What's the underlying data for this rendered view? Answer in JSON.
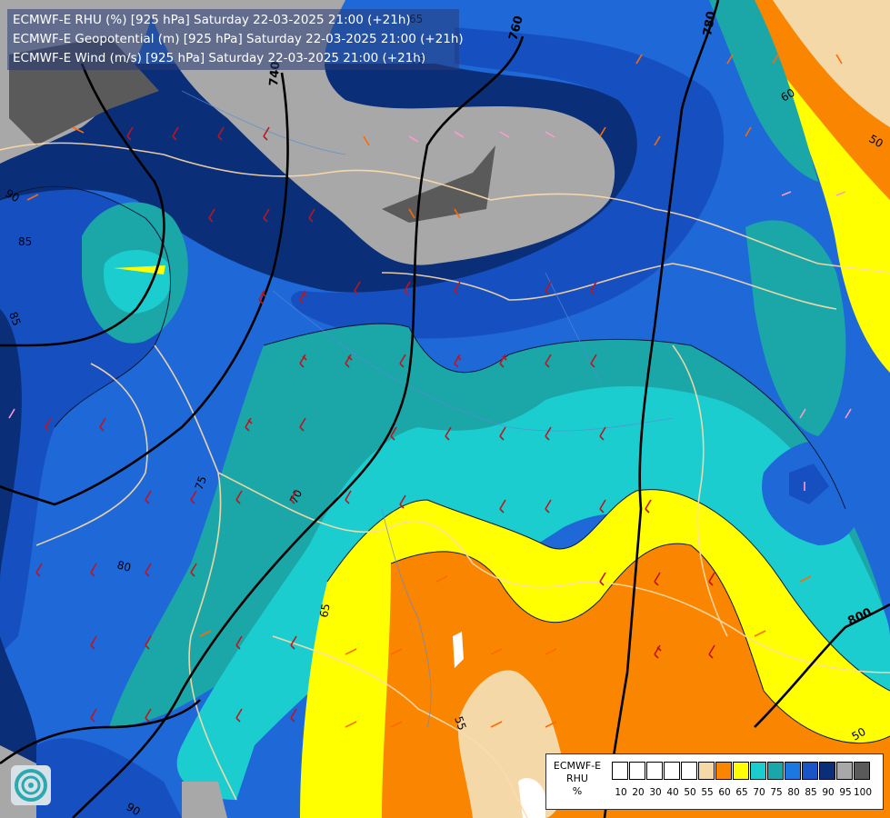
{
  "header": {
    "lines": [
      "ECMWF-E RHU (%) [925 hPa] Saturday 22-03-2025 21:00 (+21h)",
      "ECMWF-E Geopotential (m) [925 hPa] Saturday 22-03-2025 21:00 (+21h)",
      "ECMWF-E Wind (m/s) [925 hPa] Saturday 22-03-2025 21:00 (+21h)"
    ]
  },
  "legend": {
    "title_lines": [
      "ECMWF-E",
      "RHU",
      "%"
    ],
    "ticks": [
      "10",
      "20",
      "30",
      "40",
      "50",
      "55",
      "60",
      "65",
      "70",
      "75",
      "80",
      "85",
      "90",
      "95",
      "100"
    ],
    "colors": [
      "#ffffff",
      "#ffffff",
      "#ffffff",
      "#ffffff",
      "#ffffff",
      "#f5d8a8",
      "#f98500",
      "#ffff00",
      "#1ccdd0",
      "#1ba7a8",
      "#1a78e0",
      "#1a55c8",
      "#0a2f78",
      "#a8a8a8",
      "#5a5a5a"
    ]
  },
  "geopotential_labels": [
    "760",
    "780",
    "740",
    "800"
  ],
  "rhu_labels": [
    "65",
    "75",
    "60",
    "50",
    "85",
    "85",
    "90",
    "80",
    "75",
    "70",
    "65",
    "55",
    "50",
    "90"
  ]
}
